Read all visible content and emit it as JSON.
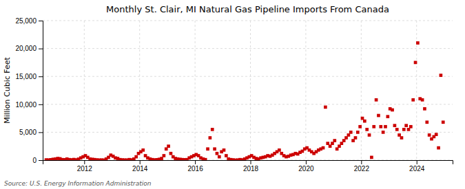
{
  "chart_data": {
    "type": "scatter",
    "title": "Monthly St. Clair, MI Natural Gas Pipeline Imports From Canada",
    "ylabel": "Million Cubic Feet",
    "source": "Source: U.S. Energy Information Administration",
    "color": "#cc0000",
    "marker": "square",
    "grid": true,
    "xlim": [
      2010.5,
      2025.3
    ],
    "xticks": [
      2012,
      2014,
      2016,
      2018,
      2020,
      2022,
      2024
    ],
    "ylim": [
      0,
      25000
    ],
    "yticks": [
      0,
      {
        "value": 5000,
        "label": "5,000"
      },
      {
        "value": 10000,
        "label": "10,000"
      },
      {
        "value": 15000,
        "label": "15,000"
      },
      {
        "value": 20000,
        "label": "20,000"
      },
      {
        "value": 25000,
        "label": "25,000"
      }
    ],
    "x": [
      2010.625,
      2010.708333333333,
      2010.791666666667,
      2010.875,
      2010.958333333333,
      2011.041666666667,
      2011.125,
      2011.208333333333,
      2011.291666666667,
      2011.375,
      2011.458333333333,
      2011.541666666667,
      2011.625,
      2011.708333333333,
      2011.791666666667,
      2011.875,
      2011.958333333333,
      2012.041666666667,
      2012.125,
      2012.208333333333,
      2012.291666666667,
      2012.375,
      2012.458333333333,
      2012.541666666667,
      2012.625,
      2012.708333333333,
      2012.791666666667,
      2012.875,
      2012.958333333333,
      2013.041666666667,
      2013.125,
      2013.208333333333,
      2013.291666666667,
      2013.375,
      2013.458333333333,
      2013.541666666667,
      2013.625,
      2013.708333333333,
      2013.791666666667,
      2013.875,
      2013.958333333333,
      2014.041666666667,
      2014.125,
      2014.208333333333,
      2014.291666666667,
      2014.375,
      2014.458333333333,
      2014.541666666667,
      2014.625,
      2014.708333333333,
      2014.791666666667,
      2014.875,
      2014.958333333333,
      2015.041666666667,
      2015.125,
      2015.208333333333,
      2015.291666666667,
      2015.375,
      2015.458333333333,
      2015.541666666667,
      2015.625,
      2015.708333333333,
      2015.791666666667,
      2015.875,
      2015.958333333333,
      2016.041666666667,
      2016.125,
      2016.208333333333,
      2016.291666666667,
      2016.375,
      2016.458333333333,
      2016.541666666667,
      2016.625,
      2016.708333333333,
      2016.791666666667,
      2016.875,
      2016.958333333333,
      2017.041666666667,
      2017.125,
      2017.208333333333,
      2017.291666666667,
      2017.375,
      2017.458333333333,
      2017.541666666667,
      2017.625,
      2017.708333333333,
      2017.791666666667,
      2017.875,
      2017.958333333333,
      2018.041666666667,
      2018.125,
      2018.208333333333,
      2018.291666666667,
      2018.375,
      2018.458333333333,
      2018.541666666667,
      2018.625,
      2018.708333333333,
      2018.791666666667,
      2018.875,
      2018.958333333333,
      2019.041666666667,
      2019.125,
      2019.208333333333,
      2019.291666666667,
      2019.375,
      2019.458333333333,
      2019.541666666667,
      2019.625,
      2019.708333333333,
      2019.791666666667,
      2019.875,
      2019.958333333333,
      2020.041666666667,
      2020.125,
      2020.208333333333,
      2020.291666666667,
      2020.375,
      2020.458333333333,
      2020.541666666667,
      2020.625,
      2020.708333333333,
      2020.791666666667,
      2020.875,
      2020.958333333333,
      2021.041666666667,
      2021.125,
      2021.208333333333,
      2021.291666666667,
      2021.375,
      2021.458333333333,
      2021.541666666667,
      2021.625,
      2021.708333333333,
      2021.791666666667,
      2021.875,
      2021.958333333333,
      2022.041666666667,
      2022.125,
      2022.208333333333,
      2022.291666666667,
      2022.375,
      2022.458333333333,
      2022.541666666667,
      2022.625,
      2022.708333333333,
      2022.791666666667,
      2022.875,
      2022.958333333333,
      2023.041666666667,
      2023.125,
      2023.208333333333,
      2023.291666666667,
      2023.375,
      2023.458333333333,
      2023.541666666667,
      2023.625,
      2023.708333333333,
      2023.791666666667,
      2023.875,
      2023.958333333333,
      2024.041666666667,
      2024.125,
      2024.208333333333,
      2024.291666666667,
      2024.375,
      2024.458333333333,
      2024.541666666667,
      2024.625,
      2024.708333333333,
      2024.791666666667,
      2024.875,
      2024.958333333333
    ],
    "values": [
      50,
      30,
      80,
      150,
      200,
      300,
      250,
      100,
      80,
      200,
      100,
      60,
      120,
      50,
      180,
      400,
      600,
      800,
      500,
      200,
      150,
      100,
      50,
      20,
      30,
      10,
      200,
      500,
      900,
      700,
      400,
      300,
      100,
      50,
      30,
      20,
      100,
      50,
      200,
      600,
      1200,
      1500,
      1800,
      800,
      400,
      200,
      100,
      50,
      80,
      150,
      300,
      800,
      2000,
      2500,
      1200,
      600,
      300,
      200,
      150,
      100,
      80,
      100,
      400,
      600,
      800,
      1000,
      800,
      400,
      200,
      100,
      2000,
      4000,
      5500,
      2000,
      1200,
      600,
      1500,
      1800,
      800,
      200,
      100,
      50,
      0,
      30,
      100,
      50,
      200,
      400,
      600,
      800,
      500,
      300,
      200,
      400,
      500,
      600,
      800,
      700,
      900,
      1200,
      1500,
      1800,
      1200,
      800,
      600,
      700,
      900,
      1000,
      1200,
      1100,
      1400,
      1600,
      2000,
      2200,
      1800,
      1500,
      1200,
      1500,
      1800,
      2000,
      2200,
      9500,
      3000,
      2500,
      3000,
      3500,
      2000,
      2500,
      3000,
      3500,
      4000,
      4500,
      5000,
      3500,
      4000,
      5000,
      6000,
      7500,
      7000,
      5500,
      4500,
      500,
      6000,
      10800,
      8000,
      6000,
      5000,
      6000,
      7800,
      9200,
      9000,
      6200,
      5500,
      4500,
      4000,
      5500,
      6200,
      5500,
      6000,
      10800,
      17500,
      21000,
      11000,
      10800,
      9200,
      6800,
      4500,
      3800,
      4200,
      4600,
      2200,
      15200,
      6800
    ]
  }
}
